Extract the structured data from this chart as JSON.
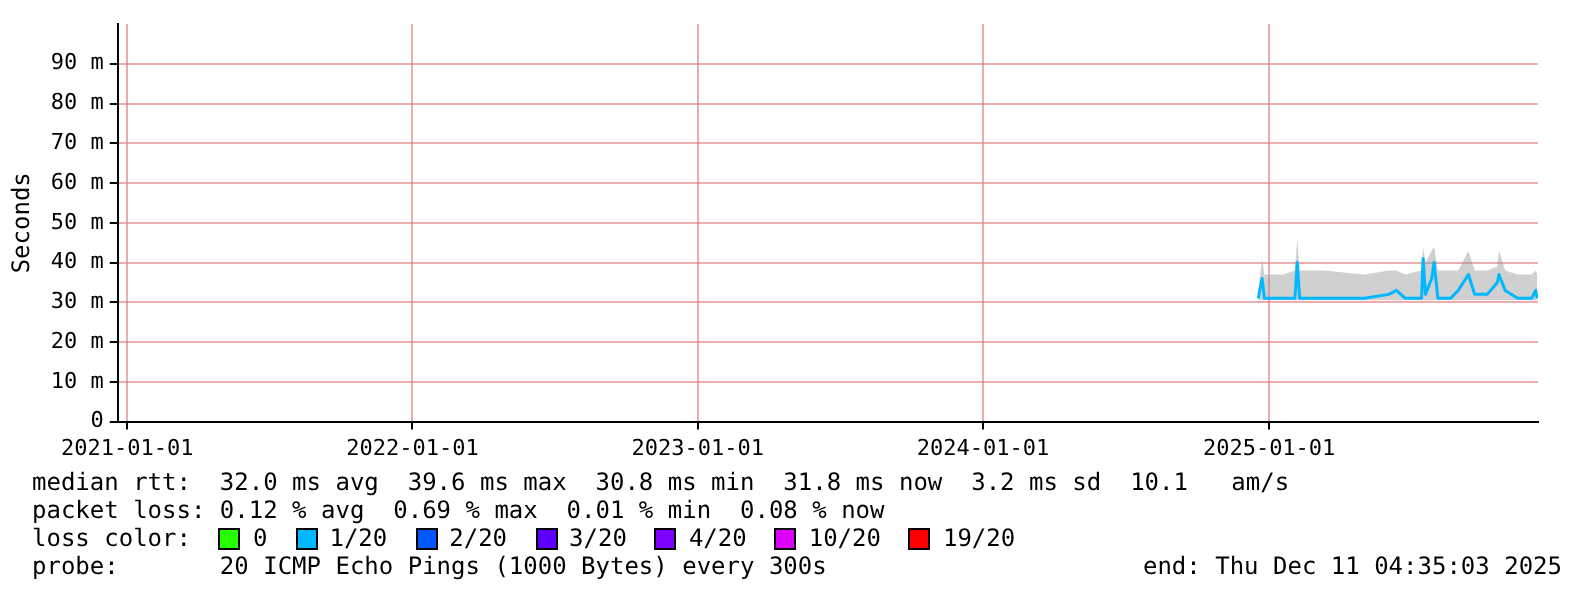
{
  "chart_data": {
    "type": "line",
    "ylabel": "Seconds",
    "x": [
      "2024-12-18",
      "2024-12-23",
      "2024-12-26",
      "2025-01-19",
      "2025-02-03",
      "2025-02-06",
      "2025-02-09",
      "2025-03-12",
      "2025-05-03",
      "2025-06-03",
      "2025-06-13",
      "2025-06-24",
      "2025-07-15",
      "2025-07-17",
      "2025-07-20",
      "2025-07-28",
      "2025-07-31",
      "2025-08-05",
      "2025-08-21",
      "2025-08-31",
      "2025-09-13",
      "2025-09-21",
      "2025-10-07",
      "2025-10-20",
      "2025-10-22",
      "2025-10-30",
      "2025-11-15",
      "2025-12-03",
      "2025-12-08",
      "2025-12-10"
    ],
    "series": [
      {
        "name": "0",
        "color": "#26ff00",
        "values": [
          null,
          null,
          null,
          null,
          null,
          null,
          null,
          null,
          null,
          null,
          null,
          null,
          null,
          null,
          null,
          null,
          null,
          null,
          null,
          null,
          null,
          null,
          null,
          null,
          null,
          null,
          null,
          null,
          null,
          null
        ]
      },
      {
        "name": "1/20",
        "color": "#00b8ff",
        "values": [
          31,
          36,
          31,
          31,
          31,
          40,
          31,
          31,
          31,
          32,
          33,
          31,
          31,
          41,
          32,
          36,
          40,
          31,
          31,
          33,
          37,
          32,
          32,
          35,
          37,
          33,
          31,
          31,
          33,
          31
        ],
        "lower": [
          30.5,
          30.5,
          30.5,
          30.5,
          30.5,
          30.5,
          30.5,
          30.5,
          30.5,
          30.5,
          30.5,
          30.5,
          30.5,
          30.5,
          30.5,
          30.5,
          30.5,
          30.5,
          30.5,
          30.5,
          30.5,
          30.5,
          30.5,
          30.5,
          30.5,
          30.5,
          30.5,
          30.5,
          30.5,
          30.5
        ],
        "upper": [
          33,
          41,
          37,
          37,
          38,
          46,
          38,
          38,
          37,
          38,
          38,
          37,
          38,
          44,
          40,
          43,
          44,
          38,
          38,
          38,
          43,
          38,
          38,
          39,
          43,
          38,
          37,
          37,
          38,
          37
        ]
      },
      {
        "name": "2/20",
        "color": "#0059ff",
        "values": [
          null,
          null,
          null,
          null,
          null,
          null,
          null,
          null,
          null,
          null,
          null,
          null,
          null,
          null,
          null,
          null,
          null,
          null,
          null,
          null,
          null,
          null,
          null,
          null,
          null,
          null,
          null,
          null,
          null,
          null
        ]
      },
      {
        "name": "3/20",
        "color": "#5e00ff",
        "values": [
          null,
          null,
          null,
          null,
          null,
          null,
          null,
          null,
          null,
          null,
          null,
          null,
          null,
          null,
          null,
          null,
          null,
          null,
          null,
          null,
          null,
          null,
          null,
          null,
          null,
          null,
          null,
          null,
          null,
          null
        ]
      },
      {
        "name": "4/20",
        "color": "#7e00ff",
        "values": [
          null,
          null,
          null,
          null,
          null,
          null,
          null,
          null,
          null,
          null,
          null,
          null,
          null,
          null,
          null,
          null,
          null,
          null,
          null,
          null,
          null,
          null,
          null,
          null,
          null,
          null,
          null,
          null,
          null,
          null
        ]
      },
      {
        "name": "10/20",
        "color": "#dd00ff",
        "values": [
          null,
          null,
          null,
          null,
          null,
          null,
          null,
          null,
          null,
          null,
          null,
          null,
          null,
          null,
          null,
          null,
          null,
          null,
          null,
          null,
          null,
          null,
          null,
          null,
          null,
          null,
          null,
          null,
          null,
          null
        ]
      },
      {
        "name": "19/20",
        "color": "#ff0000",
        "values": [
          null,
          null,
          null,
          null,
          null,
          null,
          null,
          null,
          null,
          null,
          null,
          null,
          null,
          null,
          null,
          null,
          null,
          null,
          null,
          null,
          null,
          null,
          null,
          null,
          null,
          null,
          null,
          null,
          null,
          null
        ]
      }
    ],
    "xlim": [
      "2020-12-20",
      "2025-12-11"
    ],
    "xticks": [
      "2021-01-01",
      "2022-01-01",
      "2023-01-01",
      "2024-01-01",
      "2025-01-01"
    ],
    "ylim": [
      0,
      100
    ],
    "yticks": [
      0,
      {
        "value": 10,
        "label": "10 m"
      },
      {
        "value": 20,
        "label": "20 m"
      },
      {
        "value": 30,
        "label": "30 m"
      },
      {
        "value": 40,
        "label": "40 m"
      },
      {
        "value": 50,
        "label": "50 m"
      },
      {
        "value": 60,
        "label": "60 m"
      },
      {
        "value": 70,
        "label": "70 m"
      },
      {
        "value": 80,
        "label": "80 m"
      },
      {
        "value": 90,
        "label": "90 m"
      }
    ],
    "grid": true,
    "legend": "bottom",
    "legend_title": "loss color:",
    "marker": "none",
    "line_style": "solid",
    "annotations": [
      "median rtt:  32.0 ms avg  39.6 ms max  30.8 ms min  31.8 ms now  3.2 ms sd  10.1   am/s",
      "packet loss: 0.12 % avg  0.69 % max  0.01 % min  0.08 % now",
      "probe:       20 ICMP Echo Pings (1000 Bytes) every 300s",
      "end: Thu Dec 11 04:35:03 2025"
    ]
  }
}
